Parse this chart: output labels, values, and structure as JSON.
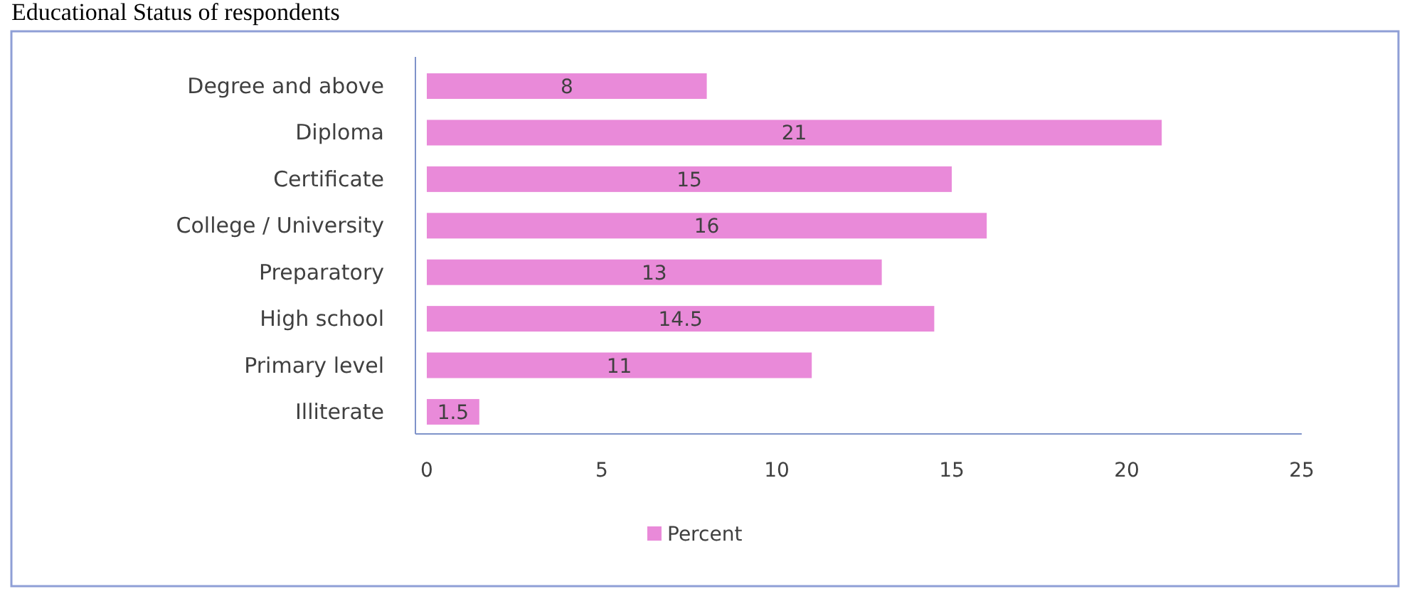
{
  "chart_data": {
    "type": "bar",
    "orientation": "horizontal",
    "title": "Educational Status of respondents",
    "categories": [
      "Degree and above",
      "Diploma",
      "Certificate",
      "College / University",
      "Preparatory",
      "High school",
      "Primary level",
      "Illiterate"
    ],
    "series": [
      {
        "name": "Percent",
        "color": "#e98ad9",
        "values": [
          8,
          21,
          15,
          16,
          13,
          14.5,
          11,
          1.5
        ]
      }
    ],
    "xlim": [
      0,
      25
    ],
    "xticks": [
      0,
      5,
      10,
      15,
      20,
      25
    ],
    "data_labels": true,
    "legend": "bottom"
  }
}
